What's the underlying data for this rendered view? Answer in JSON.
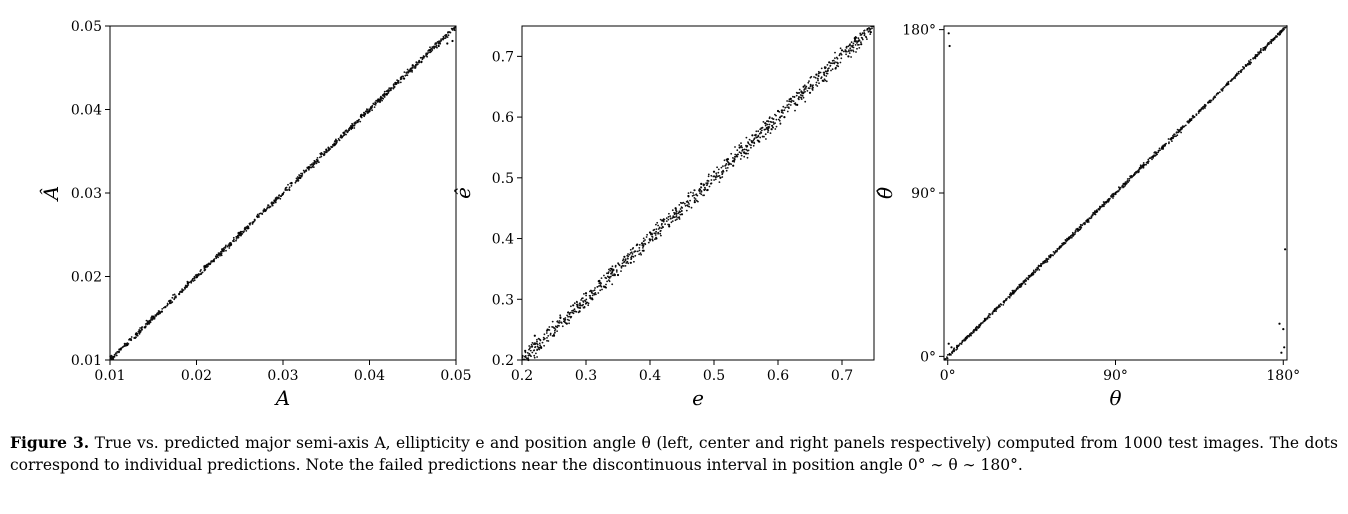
{
  "figure": {
    "caption_label": "Figure 3.",
    "caption_text": " True vs. predicted major semi-axis A, ellipticity e and position angle θ (left, center and right panels respectively) computed from 1000 test images. The dots correspond to individual predictions. Note the failed predictions near the discontinuous interval in position angle 0° ∼ θ ∼ 180°."
  },
  "chart_data": [
    {
      "type": "scatter",
      "panel": "left",
      "xlabel": "A",
      "ylabel": "Â",
      "xlim": [
        0.01,
        0.05
      ],
      "ylim": [
        0.01,
        0.05
      ],
      "xticks": [
        0.01,
        0.02,
        0.03,
        0.04,
        0.05
      ],
      "yticks": [
        0.01,
        0.02,
        0.03,
        0.04,
        0.05
      ],
      "xtick_labels": [
        "0.01",
        "0.02",
        "0.03",
        "0.04",
        "0.05"
      ],
      "ytick_labels": [
        "0.01",
        "0.02",
        "0.03",
        "0.04",
        "0.05"
      ],
      "series": [
        {
          "points": [
            [
              0.0105,
              0.0104
            ],
            [
              0.0112,
              0.0113
            ],
            [
              0.012,
              0.0118
            ],
            [
              0.013,
              0.0131
            ],
            [
              0.014,
              0.0139
            ],
            [
              0.015,
              0.0152
            ],
            [
              0.016,
              0.0158
            ],
            [
              0.017,
              0.0171
            ],
            [
              0.018,
              0.0179
            ],
            [
              0.019,
              0.0192
            ],
            [
              0.02,
              0.0199
            ],
            [
              0.021,
              0.0212
            ],
            [
              0.022,
              0.0219
            ],
            [
              0.023,
              0.0231
            ],
            [
              0.024,
              0.0238
            ],
            [
              0.025,
              0.0252
            ],
            [
              0.026,
              0.0258
            ],
            [
              0.027,
              0.0272
            ],
            [
              0.028,
              0.0279
            ],
            [
              0.029,
              0.0291
            ],
            [
              0.03,
              0.0299
            ],
            [
              0.031,
              0.0312
            ],
            [
              0.032,
              0.0318
            ],
            [
              0.033,
              0.0331
            ],
            [
              0.034,
              0.0339
            ],
            [
              0.035,
              0.0352
            ],
            [
              0.036,
              0.0358
            ],
            [
              0.037,
              0.0372
            ],
            [
              0.038,
              0.0378
            ],
            [
              0.039,
              0.0392
            ],
            [
              0.04,
              0.0398
            ],
            [
              0.041,
              0.0412
            ],
            [
              0.042,
              0.0418
            ],
            [
              0.043,
              0.0432
            ],
            [
              0.044,
              0.0437
            ],
            [
              0.045,
              0.0453
            ],
            [
              0.046,
              0.0457
            ],
            [
              0.047,
              0.0471
            ],
            [
              0.048,
              0.0476
            ],
            [
              0.049,
              0.0479
            ],
            [
              0.0496,
              0.0482
            ]
          ]
        }
      ]
    },
    {
      "type": "scatter",
      "panel": "center",
      "xlabel": "e",
      "ylabel": "ê",
      "xlim": [
        0.2,
        0.75
      ],
      "ylim": [
        0.2,
        0.75
      ],
      "xticks": [
        0.2,
        0.3,
        0.4,
        0.5,
        0.6,
        0.7
      ],
      "yticks": [
        0.2,
        0.3,
        0.4,
        0.5,
        0.6,
        0.7
      ],
      "xtick_labels": [
        "0.2",
        "0.3",
        "0.4",
        "0.5",
        "0.6",
        "0.7"
      ],
      "ytick_labels": [
        "0.2",
        "0.3",
        "0.4",
        "0.5",
        "0.6",
        "0.7"
      ],
      "series": [
        {
          "points": [
            [
              0.205,
              0.215
            ],
            [
              0.21,
              0.2
            ],
            [
              0.22,
              0.24
            ],
            [
              0.23,
              0.22
            ],
            [
              0.24,
              0.25
            ],
            [
              0.25,
              0.24
            ],
            [
              0.26,
              0.27
            ],
            [
              0.27,
              0.26
            ],
            [
              0.28,
              0.29
            ],
            [
              0.29,
              0.28
            ],
            [
              0.3,
              0.31
            ],
            [
              0.31,
              0.3
            ],
            [
              0.32,
              0.33
            ],
            [
              0.33,
              0.32
            ],
            [
              0.34,
              0.35
            ],
            [
              0.35,
              0.34
            ],
            [
              0.36,
              0.37
            ],
            [
              0.37,
              0.36
            ],
            [
              0.38,
              0.39
            ],
            [
              0.39,
              0.38
            ],
            [
              0.4,
              0.41
            ],
            [
              0.41,
              0.4
            ],
            [
              0.42,
              0.43
            ],
            [
              0.43,
              0.42
            ],
            [
              0.44,
              0.45
            ],
            [
              0.45,
              0.44
            ],
            [
              0.46,
              0.47
            ],
            [
              0.47,
              0.46
            ],
            [
              0.48,
              0.49
            ],
            [
              0.49,
              0.48
            ],
            [
              0.5,
              0.51
            ],
            [
              0.51,
              0.5
            ],
            [
              0.52,
              0.53
            ],
            [
              0.53,
              0.52
            ],
            [
              0.54,
              0.55
            ],
            [
              0.55,
              0.54
            ],
            [
              0.56,
              0.57
            ],
            [
              0.57,
              0.56
            ],
            [
              0.58,
              0.59
            ],
            [
              0.59,
              0.58
            ],
            [
              0.6,
              0.61
            ],
            [
              0.61,
              0.6
            ],
            [
              0.62,
              0.63
            ],
            [
              0.63,
              0.62
            ],
            [
              0.64,
              0.65
            ],
            [
              0.65,
              0.64
            ],
            [
              0.66,
              0.67
            ],
            [
              0.67,
              0.66
            ],
            [
              0.68,
              0.69
            ],
            [
              0.69,
              0.68
            ],
            [
              0.7,
              0.71
            ],
            [
              0.71,
              0.7
            ],
            [
              0.72,
              0.73
            ],
            [
              0.73,
              0.72
            ],
            [
              0.74,
              0.745
            ],
            [
              0.745,
              0.74
            ]
          ]
        }
      ]
    },
    {
      "type": "scatter",
      "panel": "right",
      "xlabel": "θ",
      "ylabel": "θ̂",
      "xlim": [
        -2,
        182
      ],
      "ylim": [
        -2,
        182
      ],
      "xticks": [
        0,
        90,
        180
      ],
      "yticks": [
        0,
        90,
        180
      ],
      "xtick_labels": [
        "0°",
        "90°",
        "180°"
      ],
      "ytick_labels": [
        "0°",
        "90°",
        "180°"
      ],
      "series": [
        {
          "points": [
            [
              1,
              1
            ],
            [
              5,
              5
            ],
            [
              10,
              10
            ],
            [
              15,
              15
            ],
            [
              20,
              20
            ],
            [
              25,
              25
            ],
            [
              30,
              30
            ],
            [
              35,
              35
            ],
            [
              40,
              40
            ],
            [
              45,
              45
            ],
            [
              50,
              50
            ],
            [
              55,
              55
            ],
            [
              60,
              60
            ],
            [
              65,
              65
            ],
            [
              70,
              70
            ],
            [
              75,
              75
            ],
            [
              80,
              80
            ],
            [
              85,
              85
            ],
            [
              90,
              90
            ],
            [
              95,
              95
            ],
            [
              100,
              100
            ],
            [
              105,
              105
            ],
            [
              110,
              110
            ],
            [
              115,
              115
            ],
            [
              120,
              120
            ],
            [
              125,
              125
            ],
            [
              130,
              130
            ],
            [
              135,
              135
            ],
            [
              140,
              140
            ],
            [
              145,
              145
            ],
            [
              150,
              150
            ],
            [
              155,
              155
            ],
            [
              160,
              160
            ],
            [
              165,
              165
            ],
            [
              170,
              170
            ],
            [
              175,
              175
            ],
            [
              179,
              179
            ]
          ],
          "outliers": [
            [
              1,
              171
            ],
            [
              0.5,
              178
            ],
            [
              178,
              18
            ],
            [
              180,
              15
            ],
            [
              181,
              59
            ],
            [
              179,
              2
            ],
            [
              180.5,
              5
            ],
            [
              0.5,
              7
            ],
            [
              2,
              5
            ]
          ]
        }
      ]
    }
  ]
}
